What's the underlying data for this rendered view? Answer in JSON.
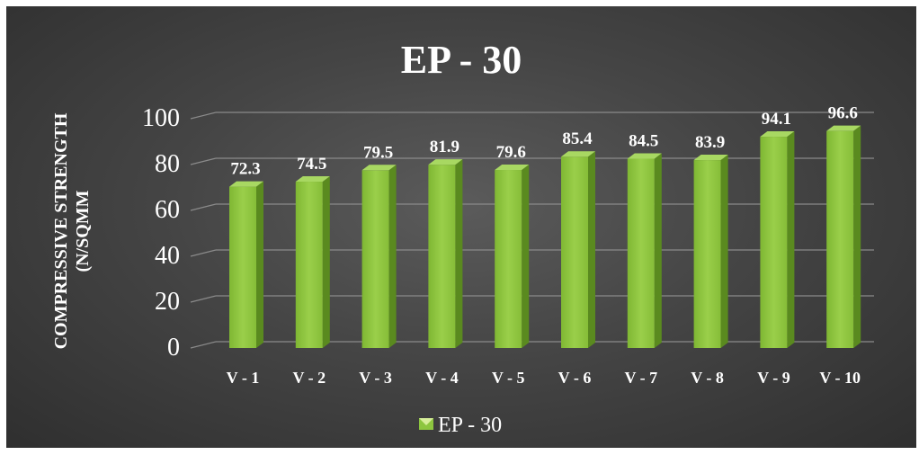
{
  "chart_data": {
    "type": "bar",
    "title": "EP - 30",
    "xlabel": "",
    "ylabel": "COMPRESSIVE STRENGTH (N/SQMM",
    "ylabel_lines": [
      "COMPRESSIVE STRENGTH",
      "(N/SQMM"
    ],
    "categories": [
      "V - 1",
      "V - 2",
      "V - 3",
      "V - 4",
      "V - 5",
      "V - 6",
      "V - 7",
      "V - 8",
      "V - 9",
      "V - 10"
    ],
    "series": [
      {
        "name": "EP - 30",
        "values": [
          72.3,
          74.5,
          79.5,
          81.9,
          79.6,
          85.4,
          84.5,
          83.9,
          94.1,
          96.6
        ]
      }
    ],
    "data_labels": [
      "72.3",
      "74.5",
      "79.5",
      "81.9",
      "79.6",
      "85.4",
      "84.5",
      "83.9",
      "94.1",
      "96.6"
    ],
    "ylim": [
      0,
      100
    ],
    "yticks": [
      0,
      20,
      40,
      60,
      80,
      100
    ],
    "grid": true,
    "legend_position": "bottom",
    "colors": {
      "bar_front": "#8dc63f",
      "bar_side": "#5a8a1f",
      "bar_top": "#a8d862",
      "gridline": "#8a8a8a",
      "text": "#ffffff"
    }
  }
}
